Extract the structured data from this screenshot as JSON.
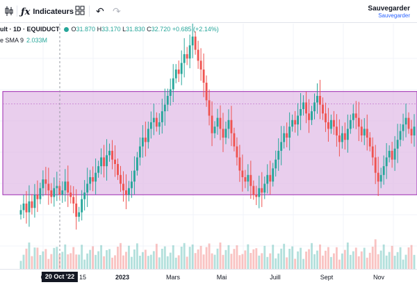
{
  "toolbar": {
    "indicators_label": "Indicateurs",
    "save_label": "Sauvegarder",
    "save_sublabel": "Sauvegarder"
  },
  "legend": {
    "symbol": "ult · 1D · EQUIDUCT",
    "ohlc": {
      "o_label": "O",
      "o": "31.870",
      "h_label": "H",
      "h": "33.170",
      "l_label": "L",
      "l": "31.830",
      "c_label": "C",
      "c": "32.720",
      "change": "+0.685 (+2.14%)"
    },
    "indicator": {
      "name": "e SMA 9",
      "value": "2.033M"
    }
  },
  "x_axis": {
    "labels": [
      "O",
      "15",
      "2023",
      "Mars",
      "Mai",
      "Juill",
      "Sept",
      "Nov"
    ],
    "crosshair_label": "20 Oct '22"
  },
  "colors": {
    "up": "#26a69a",
    "down": "#ef5350",
    "range_fill": "#e1bee7",
    "range_border": "#9c27b0",
    "crosshair": "#9598a1"
  },
  "chart_data": {
    "type": "candlestick",
    "symbol": "ult · 1D · EQUIDUCT",
    "closes": [
      31.9,
      32.2,
      31.8,
      32.3,
      32.0,
      32.6,
      32.4,
      32.9,
      33.3,
      33.1,
      32.8,
      32.5,
      32.9,
      33.0,
      32.6,
      32.8,
      33.2,
      32.7,
      32.5,
      32.2,
      31.6,
      31.8,
      32.4,
      32.7,
      33.1,
      33.4,
      33.2,
      33.6,
      33.9,
      34.3,
      33.9,
      34.4,
      34.6,
      34.2,
      34.0,
      33.5,
      33.1,
      32.8,
      32.6,
      32.9,
      33.2,
      33.7,
      34.3,
      34.8,
      35.2,
      35.0,
      35.6,
      35.9,
      36.1,
      35.7,
      35.9,
      36.4,
      36.7,
      37.1,
      37.4,
      37.9,
      38.3,
      38.1,
      38.6,
      39.0,
      38.8,
      39.4,
      39.8,
      39.2,
      38.7,
      38.3,
      37.7,
      36.9,
      36.2,
      35.4,
      35.7,
      36.1,
      35.6,
      35.2,
      35.6,
      36.0,
      35.4,
      34.8,
      34.3,
      33.7,
      33.4,
      33.2,
      33.5,
      33.0,
      32.6,
      32.5,
      32.9,
      32.7,
      33.1,
      33.5,
      33.2,
      33.8,
      34.2,
      34.6,
      35.0,
      35.4,
      35.2,
      35.7,
      36.0,
      35.8,
      36.2,
      36.5,
      36.8,
      36.3,
      36.0,
      36.4,
      36.8,
      37.1,
      36.7,
      36.3,
      35.9,
      35.6,
      36.0,
      35.7,
      35.3,
      35.0,
      35.4,
      35.1,
      35.6,
      36.0,
      36.3,
      36.1,
      35.7,
      35.3,
      35.6,
      35.2,
      34.8,
      34.3,
      33.6,
      33.2,
      33.5,
      33.9,
      34.3,
      34.6,
      34.2,
      34.7,
      35.1,
      35.5,
      35.8,
      36.1,
      35.6,
      35.3,
      35.7
    ],
    "ylim": [
      30.9,
      40.2
    ],
    "ranges": [
      {
        "name": "price-range",
        "low": 32.6,
        "high": 37.3
      }
    ],
    "crosshair_x_label": "20 Oct '22",
    "x_tick_labels": [
      "O",
      "15",
      "2023",
      "Mars",
      "Mai",
      "Juill",
      "Sept",
      "Nov"
    ],
    "volume_indicator": {
      "name": "e SMA 9",
      "value": "2.033M"
    }
  }
}
